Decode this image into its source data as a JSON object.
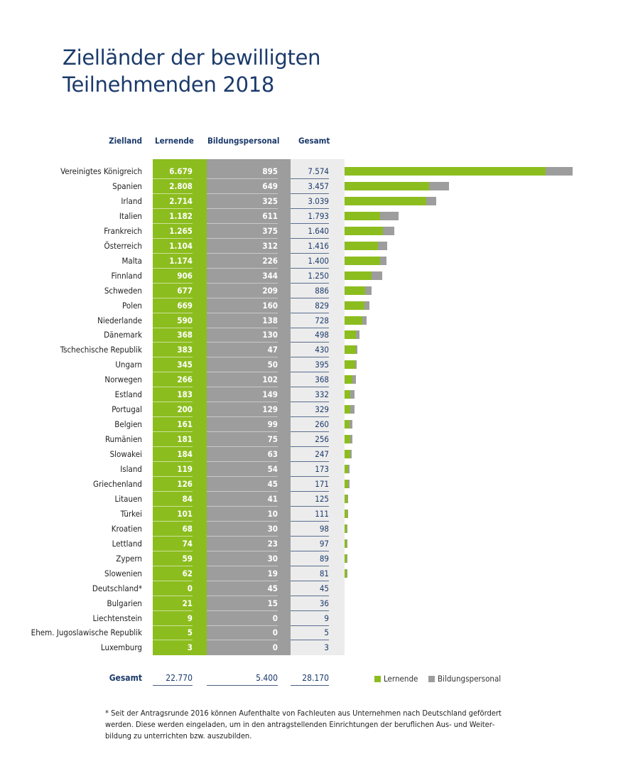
{
  "title_line1": "Zielländer der bewilligten",
  "title_line2": "Teilnehmenden 2018",
  "colors": {
    "lernende": "#8cbd1e",
    "bildungspersonal": "#9d9d9d",
    "gesamt_bg": "#ececec",
    "text": "#1b3a6b"
  },
  "chart_data": {
    "type": "bar",
    "orientation": "horizontal",
    "stacked": true,
    "columns": [
      "Zielland",
      "Lernende",
      "Bildungspersonal",
      "Gesamt"
    ],
    "rows": [
      {
        "country": "Vereinigtes Königreich",
        "lernende": "6.679",
        "bildung": "895",
        "gesamt": "7.574"
      },
      {
        "country": "Spanien",
        "lernende": "2.808",
        "bildung": "649",
        "gesamt": "3.457"
      },
      {
        "country": "Irland",
        "lernende": "2.714",
        "bildung": "325",
        "gesamt": "3.039"
      },
      {
        "country": "Italien",
        "lernende": "1.182",
        "bildung": "611",
        "gesamt": "1.793"
      },
      {
        "country": "Frankreich",
        "lernende": "1.265",
        "bildung": "375",
        "gesamt": "1.640"
      },
      {
        "country": "Österreich",
        "lernende": "1.104",
        "bildung": "312",
        "gesamt": "1.416"
      },
      {
        "country": "Malta",
        "lernende": "1.174",
        "bildung": "226",
        "gesamt": "1.400"
      },
      {
        "country": "Finnland",
        "lernende": "906",
        "bildung": "344",
        "gesamt": "1.250"
      },
      {
        "country": "Schweden",
        "lernende": "677",
        "bildung": "209",
        "gesamt": "886"
      },
      {
        "country": "Polen",
        "lernende": "669",
        "bildung": "160",
        "gesamt": "829"
      },
      {
        "country": "Niederlande",
        "lernende": "590",
        "bildung": "138",
        "gesamt": "728"
      },
      {
        "country": "Dänemark",
        "lernende": "368",
        "bildung": "130",
        "gesamt": "498"
      },
      {
        "country": "Tschechische Republik",
        "lernende": "383",
        "bildung": "47",
        "gesamt": "430"
      },
      {
        "country": "Ungarn",
        "lernende": "345",
        "bildung": "50",
        "gesamt": "395"
      },
      {
        "country": "Norwegen",
        "lernende": "266",
        "bildung": "102",
        "gesamt": "368"
      },
      {
        "country": "Estland",
        "lernende": "183",
        "bildung": "149",
        "gesamt": "332"
      },
      {
        "country": "Portugal",
        "lernende": "200",
        "bildung": "129",
        "gesamt": "329"
      },
      {
        "country": "Belgien",
        "lernende": "161",
        "bildung": "99",
        "gesamt": "260"
      },
      {
        "country": "Rumänien",
        "lernende": "181",
        "bildung": "75",
        "gesamt": "256"
      },
      {
        "country": "Slowakei",
        "lernende": "184",
        "bildung": "63",
        "gesamt": "247"
      },
      {
        "country": "Island",
        "lernende": "119",
        "bildung": "54",
        "gesamt": "173"
      },
      {
        "country": "Griechenland",
        "lernende": "126",
        "bildung": "45",
        "gesamt": "171"
      },
      {
        "country": "Litauen",
        "lernende": "84",
        "bildung": "41",
        "gesamt": "125"
      },
      {
        "country": "Türkei",
        "lernende": "101",
        "bildung": "10",
        "gesamt": "111"
      },
      {
        "country": "Kroatien",
        "lernende": "68",
        "bildung": "30",
        "gesamt": "98"
      },
      {
        "country": "Lettland",
        "lernende": "74",
        "bildung": "23",
        "gesamt": "97"
      },
      {
        "country": "Zypern",
        "lernende": "59",
        "bildung": "30",
        "gesamt": "89"
      },
      {
        "country": "Slowenien",
        "lernende": "62",
        "bildung": "19",
        "gesamt": "81"
      },
      {
        "country": "Deutschland*",
        "lernende": "0",
        "bildung": "45",
        "gesamt": "45"
      },
      {
        "country": "Bulgarien",
        "lernende": "21",
        "bildung": "15",
        "gesamt": "36"
      },
      {
        "country": "Liechtenstein",
        "lernende": "9",
        "bildung": "0",
        "gesamt": "9"
      },
      {
        "country": "Ehem. Jugoslawische Republik",
        "lernende": "5",
        "bildung": "0",
        "gesamt": "5"
      },
      {
        "country": "Luxemburg",
        "lernende": "3",
        "bildung": "0",
        "gesamt": "3"
      }
    ],
    "bars_shown_for_first_n_rows": 28,
    "totals": {
      "label": "Gesamt",
      "lernende": "22.770",
      "bildung": "5.400",
      "gesamt": "28.170"
    },
    "legend": [
      "Lernende",
      "Bildungspersonal"
    ],
    "legend_position": "bottom-right",
    "grid": false
  },
  "footnote": "* Seit der Antragsrunde 2016 können Aufenthalte von Fachleuten aus Unternehmen nach Deutschland gefördert werden. Diese werden eingeladen, um in den antragstellenden Einrichtungen der beruflichen Aus- und Weiter­bildung zu unterrichten bzw. auszubilden."
}
